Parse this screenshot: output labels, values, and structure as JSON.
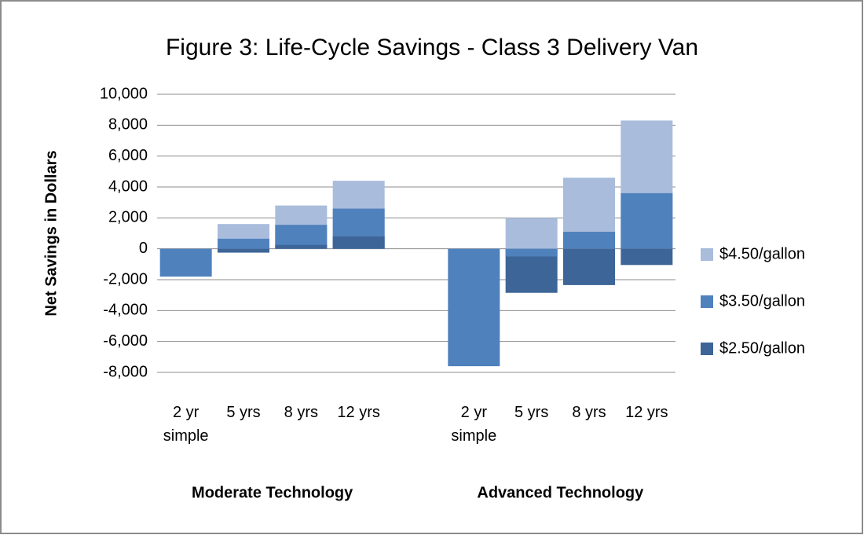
{
  "chart_data": {
    "type": "bar",
    "title": "Figure 3: Life-Cycle Savings - Class 3 Delivery Van",
    "y_label": "Net Savings in Dollars",
    "categories": [
      "2 yr\nsimple",
      "5 yrs",
      "8 yrs",
      "12 yrs",
      "2 yr\nsimple",
      "5 yrs",
      "8 yrs",
      "12 yrs"
    ],
    "group_labels": [
      "Moderate Technology",
      "Advanced Technology"
    ],
    "series": [
      {
        "name": "$4.50/gallon",
        "color": "#a9bcdb",
        "values": [
          null,
          1600,
          2800,
          4400,
          null,
          2000,
          4600,
          8300
        ]
      },
      {
        "name": "$3.50/gallon",
        "color": "#4f81bd",
        "values": [
          -1800,
          650,
          1550,
          2600,
          -7600,
          -500,
          1100,
          3600
        ]
      },
      {
        "name": "$2.50/gallon",
        "color": "#3d6597",
        "values": [
          null,
          -250,
          250,
          800,
          null,
          -2850,
          -2350,
          -1050
        ]
      }
    ],
    "ylim": [
      -8000,
      10000
    ],
    "yticks": [
      {
        "value": -8000,
        "label": "-8,000"
      },
      {
        "value": -6000,
        "label": "-6,000"
      },
      {
        "value": -4000,
        "label": "-4,000"
      },
      {
        "value": -2000,
        "label": "-2,000"
      },
      0,
      {
        "value": 2000,
        "label": "2,000"
      },
      {
        "value": 4000,
        "label": "4,000"
      },
      {
        "value": 6000,
        "label": "6,000"
      },
      {
        "value": 8000,
        "label": "8,000"
      },
      {
        "value": 10000,
        "label": "10,000"
      }
    ],
    "grid": true,
    "legend": "right"
  }
}
